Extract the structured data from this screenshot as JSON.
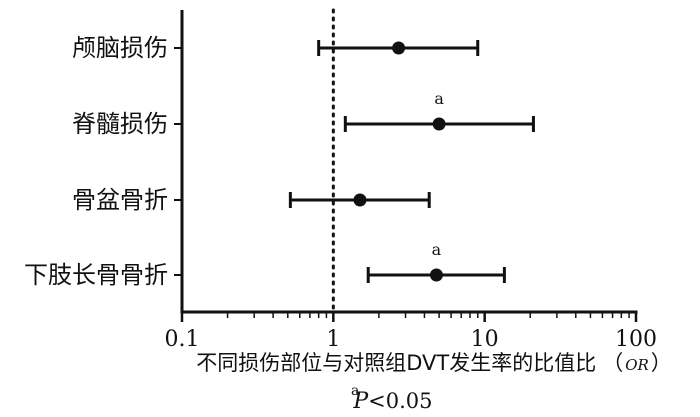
{
  "chart_data": {
    "type": "forest",
    "x_scale": "log",
    "xlim": [
      0.1,
      100
    ],
    "x_ticks": [
      {
        "value": 0.1,
        "label": "0.1"
      },
      {
        "value": 1,
        "label": "1"
      },
      {
        "value": 10,
        "label": "10"
      },
      {
        "value": 100,
        "label": "100"
      }
    ],
    "reference_line": 1,
    "categories": [
      "颅脑损伤",
      "脊髓损伤",
      "骨盆骨折",
      "下肢长骨骨折"
    ],
    "points": [
      {
        "label": "颅脑损伤",
        "or": 2.7,
        "ci_low": 0.8,
        "ci_high": 9.0,
        "mark": ""
      },
      {
        "label": "脊髓损伤",
        "or": 5.0,
        "ci_low": 1.2,
        "ci_high": 21.0,
        "mark": "a"
      },
      {
        "label": "骨盆骨折",
        "or": 1.5,
        "ci_low": 0.52,
        "ci_high": 4.3,
        "mark": ""
      },
      {
        "label": "下肢长骨骨折",
        "or": 4.8,
        "ci_low": 1.7,
        "ci_high": 13.5,
        "mark": "a"
      }
    ],
    "xlabel": "不同损伤部位与对照组DVT发生率的比值比",
    "xlabel_suffix": "OR",
    "footnote": {
      "mark": "a",
      "symbol": "P",
      "text": "<0.05"
    }
  }
}
